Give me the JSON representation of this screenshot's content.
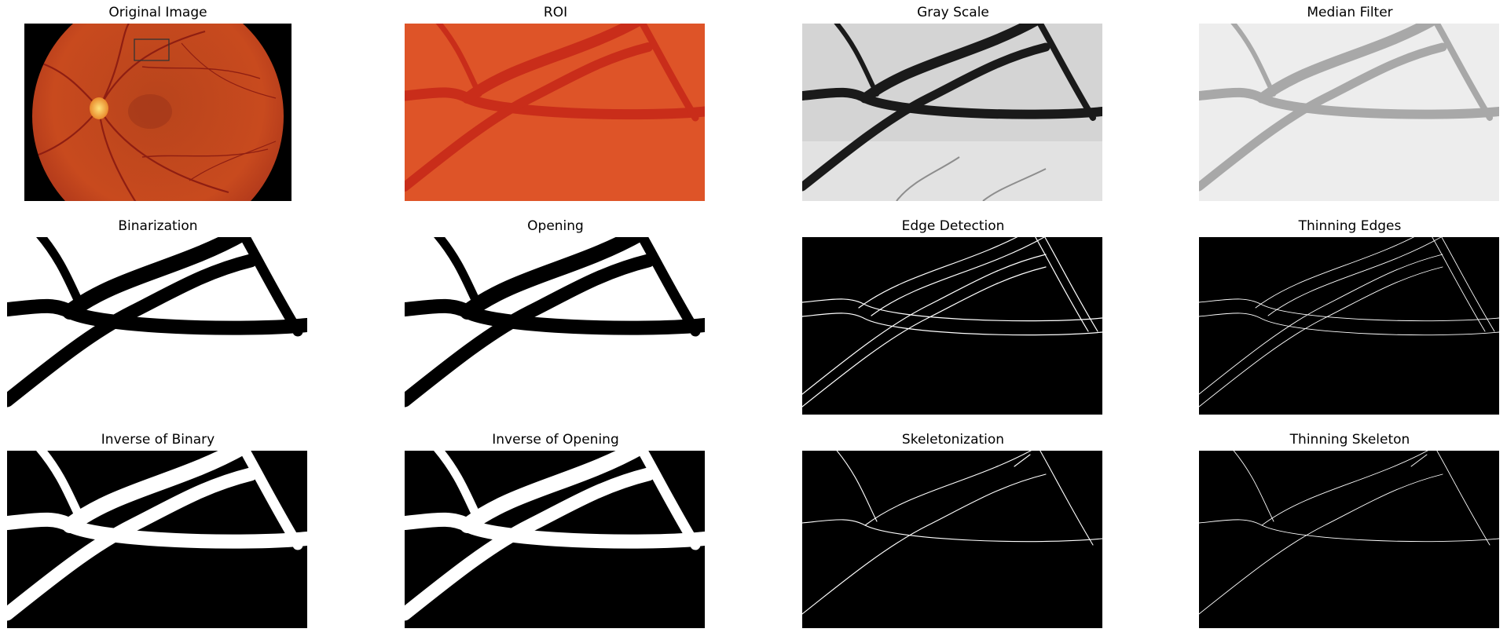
{
  "figure": {
    "panels": [
      {
        "id": "original",
        "title": "Original Image",
        "image": "fundus-photograph"
      },
      {
        "id": "roi",
        "title": "ROI",
        "image": "color-vessel-crop"
      },
      {
        "id": "gray",
        "title": "Gray Scale",
        "image": "grayscale-vessels"
      },
      {
        "id": "median",
        "title": "Median Filter",
        "image": "smoothed-grayscale-vessels"
      },
      {
        "id": "binarization",
        "title": "Binarization",
        "image": "binary-vessels-black-on-white"
      },
      {
        "id": "opening",
        "title": "Opening",
        "image": "opened-binary-vessels"
      },
      {
        "id": "edges",
        "title": "Edge Detection",
        "image": "vessel-edge-contours"
      },
      {
        "id": "thin-edges",
        "title": "Thinning Edges",
        "image": "thinned-edge-contours"
      },
      {
        "id": "inverse-binary",
        "title": "Inverse of Binary",
        "image": "white-vessels-on-black"
      },
      {
        "id": "inverse-opening",
        "title": "Inverse of Opening",
        "image": "white-opened-vessels-on-black"
      },
      {
        "id": "skeleton",
        "title": "Skeletonization",
        "image": "vessel-centerlines"
      },
      {
        "id": "thin-skeleton",
        "title": "Thinning Skeleton",
        "image": "thinned-centerlines"
      }
    ],
    "colors": {
      "fundus": "#c0401a",
      "roi_background": "#de5428",
      "vessel_red": "#c92d1a",
      "binary_foreground": "#000000",
      "background_white": "#ffffff"
    }
  }
}
